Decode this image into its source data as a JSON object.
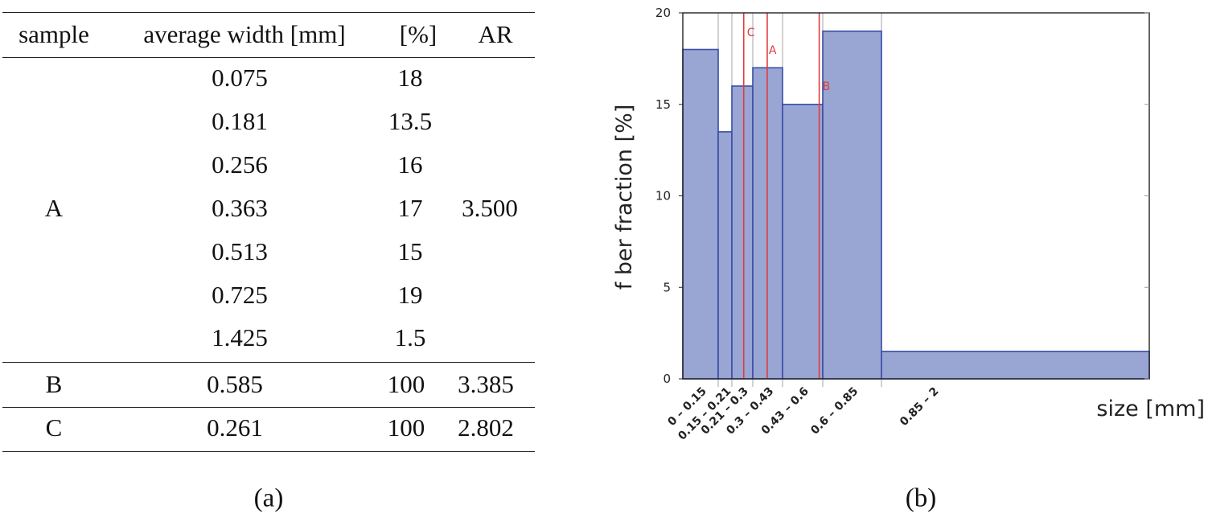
{
  "table": {
    "headers": [
      "sample",
      "average width [mm]",
      "[%]",
      "AR"
    ],
    "group_a": {
      "sample": "A",
      "ar": "3.500",
      "rows": [
        {
          "width": "0.075",
          "pct": "18"
        },
        {
          "width": "0.181",
          "pct": "13.5"
        },
        {
          "width": "0.256",
          "pct": "16"
        },
        {
          "width": "0.363",
          "pct": "17"
        },
        {
          "width": "0.513",
          "pct": "15"
        },
        {
          "width": "0.725",
          "pct": "19"
        },
        {
          "width": "1.425",
          "pct": "1.5"
        }
      ]
    },
    "group_b": {
      "sample": "B",
      "width": "0.585",
      "pct": "100",
      "ar": "3.385"
    },
    "group_c": {
      "sample": "C",
      "width": "0.261",
      "pct": "100",
      "ar": "2.802"
    }
  },
  "captions": {
    "a": "(a)",
    "b": "(b)"
  },
  "colors": {
    "bar_fill": "#99a5d3",
    "bar_edge": "#3a4ea5",
    "marker": "#e03c3c",
    "grid": "#b5b5b5"
  },
  "chart_data": {
    "type": "bar",
    "title": "",
    "xlabel": "size [mm]",
    "ylabel": "f ber fraction [%]",
    "ylim": [
      0,
      20
    ],
    "xlim": [
      0,
      2
    ],
    "yticks": [
      "0",
      "5",
      "10",
      "15",
      "20"
    ],
    "bins": [
      {
        "label": "0 – 0.15",
        "x0": 0,
        "x1": 0.15,
        "value": 18
      },
      {
        "label": "0.15 – 0.21",
        "x0": 0.15,
        "x1": 0.21,
        "value": 13.5
      },
      {
        "label": "0.21 – 0.3",
        "x0": 0.21,
        "x1": 0.3,
        "value": 16
      },
      {
        "label": "0.3 – 0.43",
        "x0": 0.3,
        "x1": 0.43,
        "value": 17
      },
      {
        "label": "0.43 – 0.6",
        "x0": 0.43,
        "x1": 0.6,
        "value": 15
      },
      {
        "label": "0.6 – 0.85",
        "x0": 0.6,
        "x1": 0.85,
        "value": 19
      },
      {
        "label": "0.85 – 2",
        "x0": 0.85,
        "x1": 2,
        "value": 1.5
      }
    ],
    "markers": [
      {
        "label": "C",
        "x": 0.261
      },
      {
        "label": "A",
        "x": 0.363
      },
      {
        "label": "B",
        "x": 0.585
      }
    ]
  }
}
